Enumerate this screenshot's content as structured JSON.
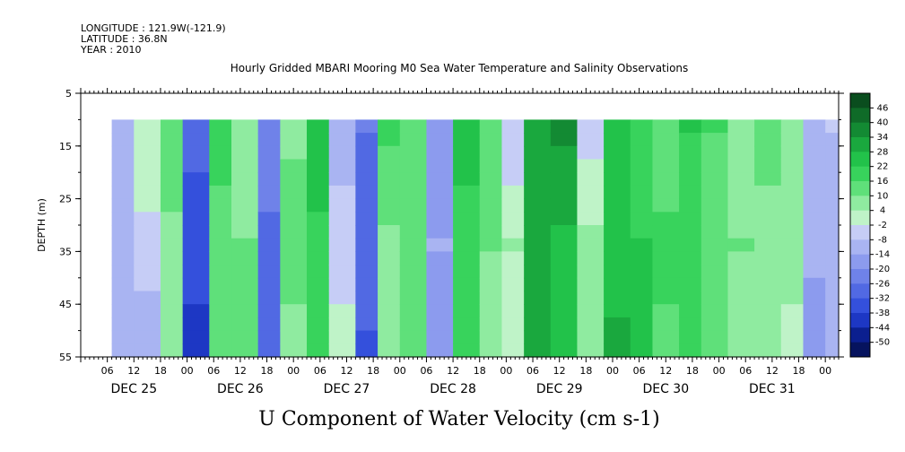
{
  "header": {
    "longitude": "LONGITUDE : 121.9W(-121.9)",
    "latitude": "LATITUDE : 36.8N",
    "year": "YEAR : 2010",
    "title": "Hourly Gridded MBARI Mooring M0 Sea Water Temperature and Salinity Observations"
  },
  "caption": "U Component of Water Velocity (cm s-1)",
  "chart_data": {
    "type": "heatmap",
    "title": "Hourly Gridded MBARI Mooring M0 Sea Water Temperature and Salinity Observations",
    "ylabel": "DEPTH (m)",
    "xlabel": "",
    "colorbar_label": "U Component of Water Velocity (cm s-1)",
    "ylim": [
      5,
      55
    ],
    "y_inverted": true,
    "y_ticks": [
      "5",
      "15",
      "25",
      "35",
      "45",
      "55"
    ],
    "x_range_hours": [
      0,
      171
    ],
    "x_hour_ticks": [
      "06",
      "12",
      "18",
      "00",
      "06",
      "12",
      "18",
      "00",
      "06",
      "12",
      "18",
      "00",
      "06",
      "12",
      "18",
      "00",
      "06",
      "12",
      "18",
      "00",
      "06",
      "12",
      "18",
      "00",
      "06",
      "12",
      "18",
      "00"
    ],
    "x_day_labels": [
      "DEC 25",
      "DEC 26",
      "DEC 27",
      "DEC 28",
      "DEC 29",
      "DEC 30",
      "DEC 31"
    ],
    "data_depth_range": [
      10,
      55
    ],
    "data_time_start_hour": 7,
    "colorbar_levels": [
      "46",
      "40",
      "34",
      "28",
      "22",
      "16",
      "10",
      "4",
      "-2",
      "-8",
      "-14",
      "-20",
      "-26",
      "-32",
      "-38",
      "-44",
      "-50"
    ],
    "colorbar_colors": [
      "#0a4d1e",
      "#0f6b28",
      "#138a33",
      "#1aa83e",
      "#22c24a",
      "#38d35c",
      "#5fe07a",
      "#8feba0",
      "#bff3c8",
      "#c6cdf6",
      "#a9b4f2",
      "#8c9bee",
      "#6f82e9",
      "#5169e3",
      "#3450dc",
      "#1d37c4",
      "#0b1f8f",
      "#06135e"
    ],
    "series": [
      {
        "hour": [
          7,
          12,
          18,
          23,
          29,
          34,
          40,
          45,
          51,
          56,
          62,
          67,
          72,
          78,
          84,
          90,
          95,
          100,
          106,
          112,
          118,
          124,
          129,
          135,
          140,
          146,
          152,
          158,
          163,
          168
        ],
        "u_surface": [
          -10,
          2,
          14,
          -30,
          20,
          4,
          -22,
          8,
          26,
          -10,
          -26,
          18,
          10,
          -20,
          24,
          14,
          -8,
          32,
          36,
          -6,
          26,
          18,
          10,
          22,
          16,
          6,
          12,
          4,
          -14,
          -8
        ],
        "u_mid": [
          -12,
          -4,
          8,
          -36,
          12,
          10,
          -28,
          14,
          20,
          -6,
          -28,
          8,
          12,
          -14,
          20,
          10,
          4,
          30,
          26,
          6,
          24,
          22,
          18,
          16,
          14,
          10,
          8,
          6,
          -12,
          -10
        ],
        "u_bottom": [
          -8,
          -14,
          6,
          -40,
          10,
          14,
          -30,
          6,
          18,
          2,
          -34,
          4,
          10,
          -16,
          16,
          8,
          2,
          34,
          24,
          10,
          30,
          26,
          14,
          20,
          12,
          6,
          10,
          2,
          -20,
          -14
        ]
      }
    ]
  }
}
